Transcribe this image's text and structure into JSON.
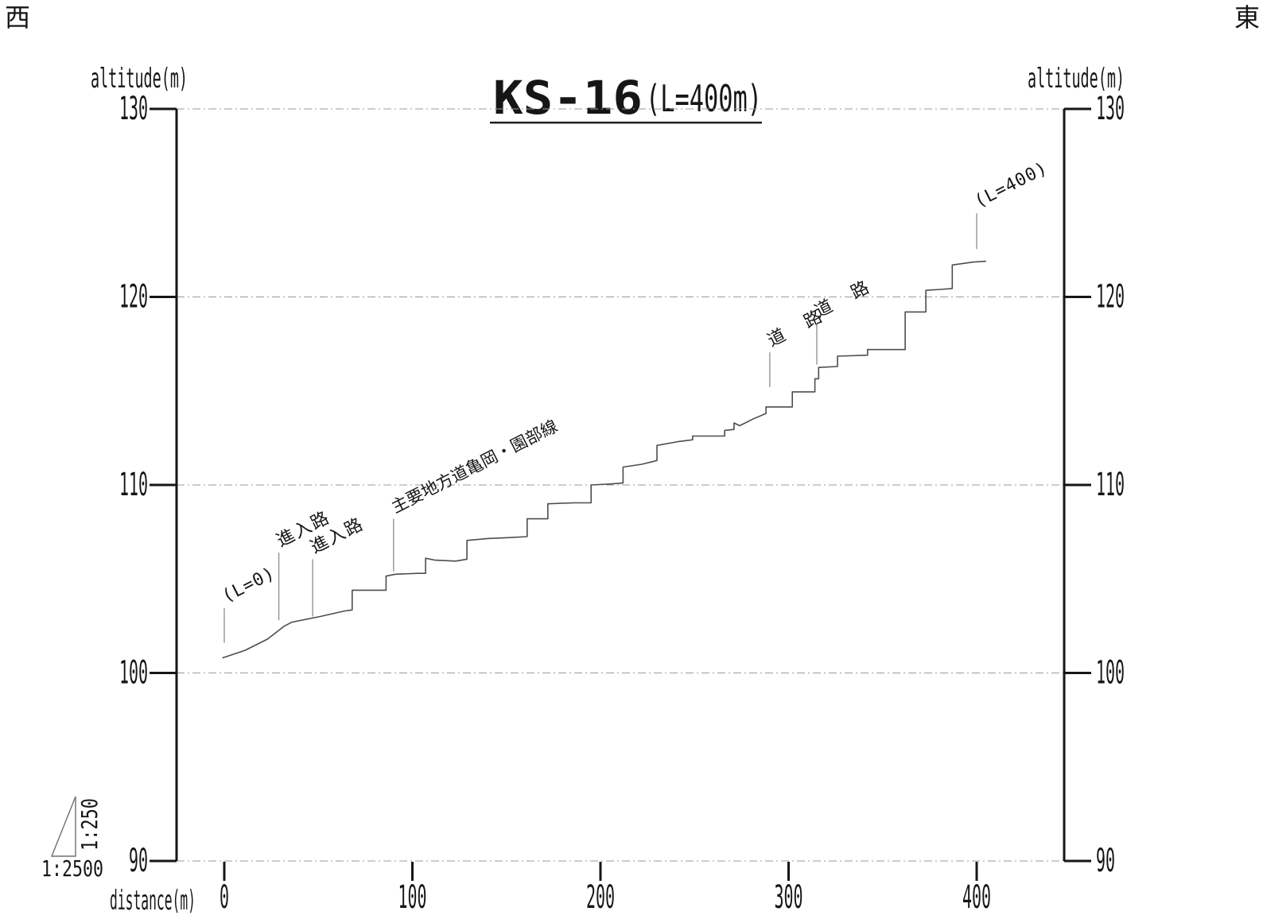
{
  "page": {
    "corner_west": "西",
    "corner_east": "東",
    "title": {
      "main": "KS-16",
      "suffix": "(L=400m)"
    },
    "axis_left_label": "altitude(m)",
    "axis_right_label": "altitude(m)",
    "x_axis_label": "distance(m)",
    "scale": {
      "horizontal": "1:2500",
      "vertical": "1:250"
    }
  },
  "chart_data": {
    "type": "line",
    "title": "KS-16(L=400m)",
    "xlabel": "distance(m)",
    "ylabel": "altitude(m)",
    "xlim": [
      -25,
      446
    ],
    "ylim": [
      90,
      130
    ],
    "x_ticks": [
      0,
      100,
      200,
      300,
      400
    ],
    "y_ticks": [
      90,
      100,
      110,
      120,
      130
    ],
    "grid": true,
    "grid_style": "dash-dot",
    "horizontal_scale": "1:2500",
    "vertical_scale": "1:250",
    "profile": [
      [
        -1,
        100.8
      ],
      [
        11,
        101.2
      ],
      [
        23,
        101.8
      ],
      [
        32,
        102.5
      ],
      [
        36,
        102.7
      ],
      [
        51,
        103.0
      ],
      [
        64,
        103.3
      ],
      [
        68,
        103.35
      ],
      [
        68,
        104.4
      ],
      [
        86,
        104.4
      ],
      [
        86,
        105.15
      ],
      [
        91,
        105.25
      ],
      [
        103,
        105.3
      ],
      [
        107,
        105.3
      ],
      [
        107,
        106.1
      ],
      [
        112,
        106.0
      ],
      [
        123,
        105.95
      ],
      [
        129,
        106.05
      ],
      [
        129,
        107.05
      ],
      [
        140,
        107.15
      ],
      [
        152,
        107.2
      ],
      [
        161,
        107.25
      ],
      [
        161,
        108.2
      ],
      [
        172,
        108.2
      ],
      [
        172,
        109.0
      ],
      [
        186,
        109.05
      ],
      [
        195,
        109.05
      ],
      [
        195,
        110.0
      ],
      [
        205,
        110.05
      ],
      [
        212,
        110.1
      ],
      [
        212,
        110.95
      ],
      [
        222,
        111.1
      ],
      [
        230,
        111.3
      ],
      [
        230,
        112.1
      ],
      [
        241,
        112.3
      ],
      [
        249,
        112.4
      ],
      [
        249,
        112.6
      ],
      [
        262,
        112.6
      ],
      [
        266,
        112.6
      ],
      [
        266,
        112.9
      ],
      [
        271,
        112.95
      ],
      [
        271,
        113.3
      ],
      [
        274,
        113.15
      ],
      [
        281,
        113.5
      ],
      [
        288,
        113.8
      ],
      [
        288,
        114.15
      ],
      [
        302,
        114.15
      ],
      [
        302,
        114.95
      ],
      [
        314,
        114.95
      ],
      [
        314,
        115.65
      ],
      [
        316,
        115.65
      ],
      [
        316,
        116.25
      ],
      [
        326,
        116.3
      ],
      [
        326,
        116.85
      ],
      [
        342,
        116.9
      ],
      [
        342,
        117.2
      ],
      [
        362,
        117.2
      ],
      [
        362,
        119.2
      ],
      [
        373,
        119.2
      ],
      [
        373,
        120.35
      ],
      [
        381,
        120.4
      ],
      [
        387,
        120.45
      ],
      [
        387,
        121.7
      ],
      [
        398,
        121.85
      ],
      [
        405,
        121.9
      ]
    ],
    "annotations": [
      {
        "label": "(L=0)",
        "x": 0,
        "leader_alt_from": 101.6,
        "leader_alt_to": 103.45,
        "font": 22,
        "spacing": 1
      },
      {
        "label": "進入路",
        "x": 29,
        "leader_alt_from": 102.8,
        "leader_alt_to": 106.4,
        "font": 22,
        "spacing": 2
      },
      {
        "label": "進入路",
        "x": 47,
        "leader_alt_from": 103.0,
        "leader_alt_to": 106.05,
        "font": 22,
        "spacing": 2
      },
      {
        "label": "主要地方道亀岡・園部線",
        "x": 90,
        "leader_alt_from": 105.4,
        "leader_alt_to": 108.2,
        "font": 21,
        "spacing": 0
      },
      {
        "label": "道 路",
        "x": 290,
        "leader_alt_from": 115.2,
        "leader_alt_to": 117.05,
        "font": 22,
        "spacing": 8
      },
      {
        "label": "道 路",
        "x": 315,
        "leader_alt_from": 116.4,
        "leader_alt_to": 118.6,
        "font": 22,
        "spacing": 8
      },
      {
        "label": "(L=400)",
        "x": 400,
        "leader_alt_from": 122.55,
        "leader_alt_to": 124.45,
        "font": 22,
        "spacing": 1
      }
    ]
  }
}
